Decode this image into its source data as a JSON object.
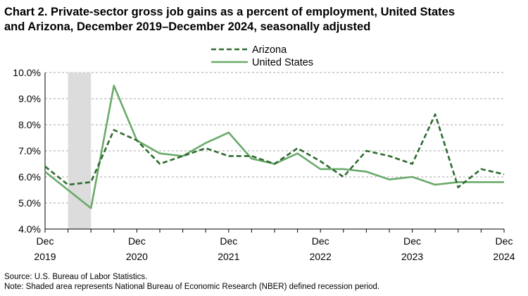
{
  "title_line1": "Chart 2. Private-sector gross job gains as a percent of employment, United States",
  "title_line2": "and Arizona, December 2019–December 2024, seasonally adjusted",
  "source": "Source: U.S. Bureau of Labor Statistics.",
  "note": "Note: Shaded area represents National Bureau of Economic Research (NBER) defined recession period.",
  "chart_data": {
    "type": "line",
    "title": "Chart 2. Private-sector gross job gains as a percent of employment, United States and Arizona, December 2019–December 2024, seasonally adjusted",
    "xlabel": "",
    "ylabel": "",
    "x": [
      "Dec 2019",
      "Mar 2020",
      "Jun 2020",
      "Sep 2020",
      "Dec 2020",
      "Mar 2021",
      "Jun 2021",
      "Sep 2021",
      "Dec 2021",
      "Mar 2022",
      "Jun 2022",
      "Sep 2022",
      "Dec 2022",
      "Mar 2023",
      "Jun 2023",
      "Sep 2023",
      "Dec 2023",
      "Mar 2024",
      "Jun 2024",
      "Sep 2024",
      "Dec 2024"
    ],
    "x_tick_labels": [
      {
        "month": "Dec",
        "year": "2019"
      },
      {
        "month": "Dec",
        "year": "2020"
      },
      {
        "month": "Dec",
        "year": "2021"
      },
      {
        "month": "Dec",
        "year": "2022"
      },
      {
        "month": "Dec",
        "year": "2023"
      },
      {
        "month": "Dec",
        "year": "2024"
      }
    ],
    "y_ticks": [
      "4.0%",
      "5.0%",
      "6.0%",
      "7.0%",
      "8.0%",
      "9.0%",
      "10.0%"
    ],
    "ylim": [
      4.0,
      10.0
    ],
    "grid": "horizontal dashed",
    "legend_position": "top",
    "recession_shading": {
      "from": "Mar 2020",
      "to": "Jun 2020"
    },
    "series": [
      {
        "name": "Arizona",
        "style": "dashed",
        "color": "#2e6b2e",
        "values": [
          6.4,
          5.7,
          5.8,
          7.8,
          7.4,
          6.5,
          6.8,
          7.1,
          6.8,
          6.8,
          6.5,
          7.1,
          6.6,
          6.0,
          7.0,
          6.8,
          6.5,
          8.4,
          5.6,
          6.3,
          6.1
        ]
      },
      {
        "name": "United States",
        "style": "solid",
        "color": "#6aaa6a",
        "values": [
          6.2,
          5.5,
          4.8,
          9.5,
          7.4,
          6.9,
          6.8,
          7.3,
          7.7,
          6.7,
          6.5,
          6.9,
          6.3,
          6.3,
          6.2,
          5.9,
          6.0,
          5.7,
          5.8,
          5.8,
          5.8
        ]
      }
    ]
  }
}
